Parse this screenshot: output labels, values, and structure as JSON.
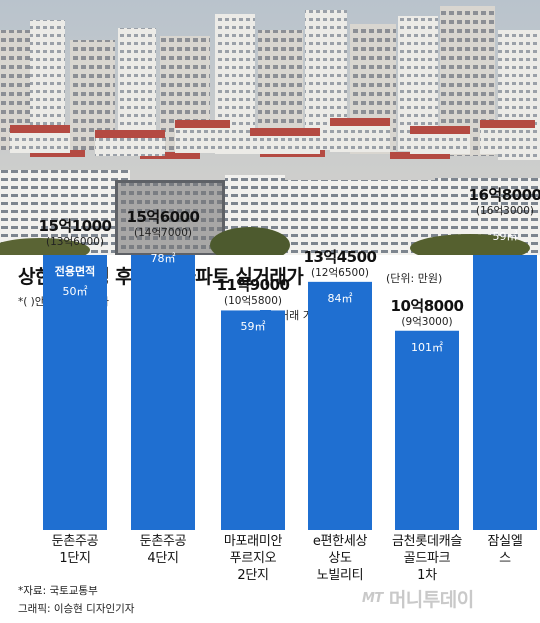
{
  "header": {
    "title": "상한제 시행 후 서울 아파트 실거래가",
    "unit": "(단위: 만원)",
    "footnote": "*( )안은 직전 최고가"
  },
  "legend": {
    "label": "거래 가격",
    "color": "#1f6fd1"
  },
  "area_caption": "전용면적",
  "chart_data": {
    "type": "bar",
    "title": "상한제 시행 후 서울 아파트 실거래가",
    "unit": "만원",
    "categories": [
      "둔촌주공\n1단지",
      "둔촌주공\n4단지",
      "마포래미안\n푸르지오\n2단지",
      "e편한세상\n상도\n노빌리티",
      "금천롯데캐슬\n골드파크\n1차",
      "잠실엘스"
    ],
    "series": [
      {
        "name": "거래 가격",
        "values": [
          151000,
          156000,
          119000,
          134500,
          108000,
          168000
        ]
      }
    ],
    "price_labels": [
      "15억1000",
      "15억6000",
      "11억9000",
      "13억4500",
      "10억8000",
      "16억8000"
    ],
    "previous_high_labels": [
      "(13억6000)",
      "(14억7000)",
      "(10억5800)",
      "(12억6500)",
      "(9억3000)",
      "(16억3000)"
    ],
    "areas": [
      "50㎡",
      "78㎡",
      "59㎡",
      "84㎡",
      "101㎡",
      "59㎡"
    ]
  },
  "source": "*자료: 국토교통부",
  "credit": "그래픽: 이승현 디자인기자",
  "logo": {
    "mark": "MT",
    "name": "머니투데이"
  }
}
